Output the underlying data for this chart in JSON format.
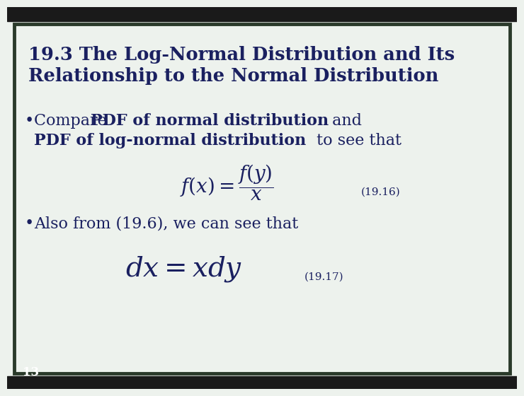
{
  "title_line1": "19.3 The Log-Normal Distribution and Its",
  "title_line2": "Relationship to the Normal Distribution",
  "eq1_label": "(19.16)",
  "bullet2_text": "Also from (19.6), we can see that",
  "equation2": "$dx = xdy$",
  "eq2_label": "(19.17)",
  "slide_number": "13",
  "bg_color": "#edf2ed",
  "border_color": "#2a3a2a",
  "title_color": "#1a2060",
  "text_color": "#1a2060",
  "top_bar_color": "#1a1a1a",
  "bottom_bar_color": "#1a1a1a"
}
